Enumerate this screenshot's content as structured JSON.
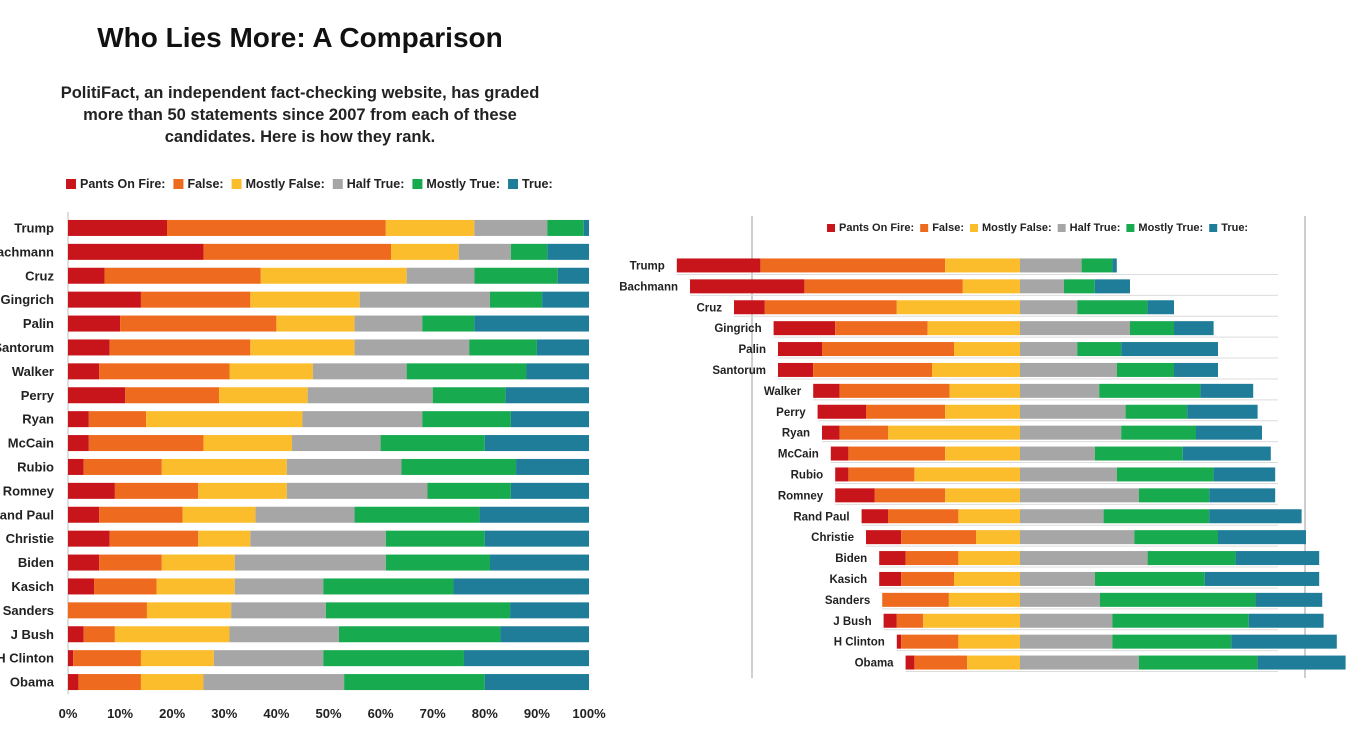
{
  "title": "Who Lies More: A Comparison",
  "subtitle": "PolitiFact, an independent fact-checking website, has graded more than 50 statements since 2007 from each of these candidates. Here is how they rank.",
  "colors": {
    "Pants On Fire:": "#c8151b",
    "False:": "#ee6a1f",
    "Mostly False:": "#fbbd2b",
    "Half True:": "#a6a6a6",
    "Mostly True:": "#18aa4f",
    "True:": "#1f7d9a"
  },
  "chart_data": [
    {
      "type": "bar",
      "orientation": "horizontal",
      "stacked": true,
      "normalized": true,
      "categories": [
        "Trump",
        "Bachmann",
        "Cruz",
        "Gingrich",
        "Palin",
        "Santorum",
        "Walker",
        "Perry",
        "Ryan",
        "McCain",
        "Rubio",
        "Romney",
        "Rand Paul",
        "Christie",
        "Biden",
        "Kasich",
        "Sanders",
        "J Bush",
        "H Clinton",
        "Obama"
      ],
      "series": [
        {
          "name": "Pants On Fire:",
          "values": [
            19,
            26,
            7,
            14,
            10,
            8,
            6,
            11,
            4,
            4,
            3,
            9,
            6,
            8,
            6,
            5,
            0,
            3,
            1,
            2
          ]
        },
        {
          "name": "False:",
          "values": [
            42,
            36,
            30,
            21,
            30,
            27,
            25,
            18,
            11,
            22,
            15,
            16,
            16,
            17,
            12,
            12,
            15,
            6,
            13,
            12
          ]
        },
        {
          "name": "Mostly False:",
          "values": [
            17,
            13,
            28,
            21,
            15,
            20,
            16,
            17,
            30,
            17,
            24,
            17,
            14,
            10,
            14,
            15,
            16,
            22,
            14,
            12
          ]
        },
        {
          "name": "Half True:",
          "values": [
            14,
            10,
            13,
            25,
            13,
            22,
            18,
            24,
            23,
            17,
            22,
            27,
            19,
            26,
            29,
            17,
            18,
            21,
            21,
            27
          ]
        },
        {
          "name": "Mostly True:",
          "values": [
            7,
            7,
            16,
            10,
            10,
            13,
            23,
            14,
            17,
            20,
            22,
            16,
            24,
            19,
            20,
            25,
            35,
            31,
            27,
            27
          ]
        },
        {
          "name": "True:",
          "values": [
            1,
            8,
            6,
            9,
            22,
            10,
            12,
            16,
            15,
            20,
            14,
            15,
            21,
            20,
            19,
            26,
            15,
            17,
            24,
            20
          ]
        }
      ],
      "xaxis": {
        "ticks": [
          "0%",
          "10%",
          "20%",
          "30%",
          "40%",
          "50%",
          "60%",
          "70%",
          "80%",
          "90%",
          "100%"
        ],
        "xlim": [
          0,
          100
        ]
      },
      "legend": "top",
      "grid": false
    },
    {
      "type": "bar",
      "orientation": "horizontal",
      "stacked": true,
      "diverging": true,
      "center_between": [
        "Mostly False:",
        "Half True:"
      ],
      "categories": [
        "Trump",
        "Bachmann",
        "Cruz",
        "Gingrich",
        "Palin",
        "Santorum",
        "Walker",
        "Perry",
        "Ryan",
        "McCain",
        "Rubio",
        "Romney",
        "Rand Paul",
        "Christie",
        "Biden",
        "Kasich",
        "Sanders",
        "J Bush",
        "H Clinton",
        "Obama"
      ],
      "series": [
        {
          "name": "Pants On Fire:",
          "values": [
            19,
            26,
            7,
            14,
            10,
            8,
            6,
            11,
            4,
            4,
            3,
            9,
            6,
            8,
            6,
            5,
            0,
            3,
            1,
            2
          ]
        },
        {
          "name": "False:",
          "values": [
            42,
            36,
            30,
            21,
            30,
            27,
            25,
            18,
            11,
            22,
            15,
            16,
            16,
            17,
            12,
            12,
            15,
            6,
            13,
            12
          ]
        },
        {
          "name": "Mostly False:",
          "values": [
            17,
            13,
            28,
            21,
            15,
            20,
            16,
            17,
            30,
            17,
            24,
            17,
            14,
            10,
            14,
            15,
            16,
            22,
            14,
            12
          ]
        },
        {
          "name": "Half True:",
          "values": [
            14,
            10,
            13,
            25,
            13,
            22,
            18,
            24,
            23,
            17,
            22,
            27,
            19,
            26,
            29,
            17,
            18,
            21,
            21,
            27
          ]
        },
        {
          "name": "Mostly True:",
          "values": [
            7,
            7,
            16,
            10,
            10,
            13,
            23,
            14,
            17,
            20,
            22,
            16,
            24,
            19,
            20,
            25,
            35,
            31,
            27,
            27
          ]
        },
        {
          "name": "True:",
          "values": [
            1,
            8,
            6,
            9,
            22,
            10,
            12,
            16,
            15,
            20,
            14,
            15,
            21,
            20,
            19,
            26,
            15,
            17,
            24,
            20
          ]
        }
      ],
      "legend": "top",
      "grid": false
    }
  ]
}
